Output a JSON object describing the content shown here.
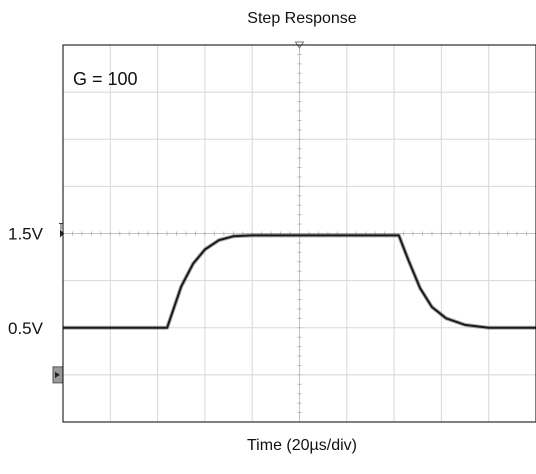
{
  "chart_data": {
    "type": "line",
    "title": "Step Response",
    "xlabel": "Time (20µs/div)",
    "ylabel": "",
    "annotation": "G = 100",
    "x_divisions": 10,
    "y_divisions": 8,
    "y_tick_labels": [
      {
        "label": "1.5V",
        "value": 1.5
      },
      {
        "label": "0.5V",
        "value": 0.5
      }
    ],
    "ylim": [
      -0.5,
      3.5
    ],
    "grid": true,
    "series": [
      {
        "color": "#1a1a1a",
        "x": [
          0,
          2.2,
          2.35,
          2.5,
          2.75,
          3.0,
          3.3,
          3.6,
          4.0,
          5.0,
          7.1,
          7.3,
          7.55,
          7.8,
          8.1,
          8.5,
          9.0,
          10.0
        ],
        "values": [
          0.5,
          0.5,
          0.72,
          0.94,
          1.18,
          1.33,
          1.43,
          1.47,
          1.48,
          1.48,
          1.48,
          1.22,
          0.92,
          0.72,
          0.6,
          0.53,
          0.5,
          0.5
        ]
      }
    ]
  }
}
